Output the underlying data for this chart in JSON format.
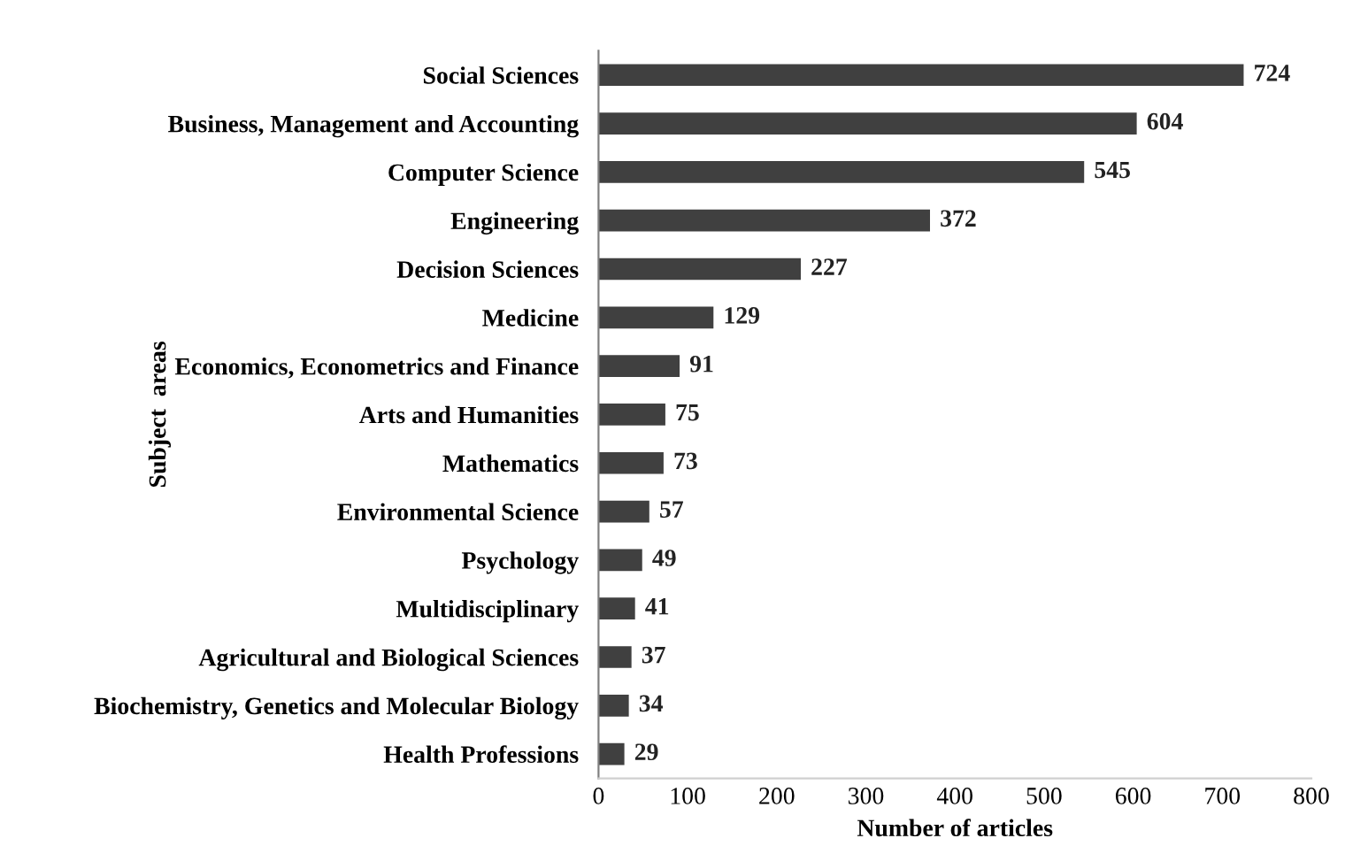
{
  "chart_data": {
    "type": "bar",
    "orientation": "horizontal",
    "xlabel": "Number of articles",
    "ylabel": "Subject  areas",
    "categories": [
      "Social Sciences",
      "Business, Management and Accounting",
      "Computer Science",
      "Engineering",
      "Decision Sciences",
      "Medicine",
      "Economics, Econometrics and Finance",
      "Arts and Humanities",
      "Mathematics",
      "Environmental Science",
      "Psychology",
      "Multidisciplinary",
      "Agricultural and Biological Sciences",
      "Biochemistry, Genetics and Molecular Biology",
      "Health Professions"
    ],
    "values": [
      724,
      604,
      545,
      372,
      227,
      129,
      91,
      75,
      73,
      57,
      49,
      41,
      37,
      34,
      29
    ],
    "color": "#404040",
    "xlim": [
      0,
      800
    ],
    "xticks": [
      0,
      100,
      200,
      300,
      400,
      500,
      600,
      700,
      800
    ],
    "data_labels": true,
    "grid": false,
    "legend": false
  }
}
